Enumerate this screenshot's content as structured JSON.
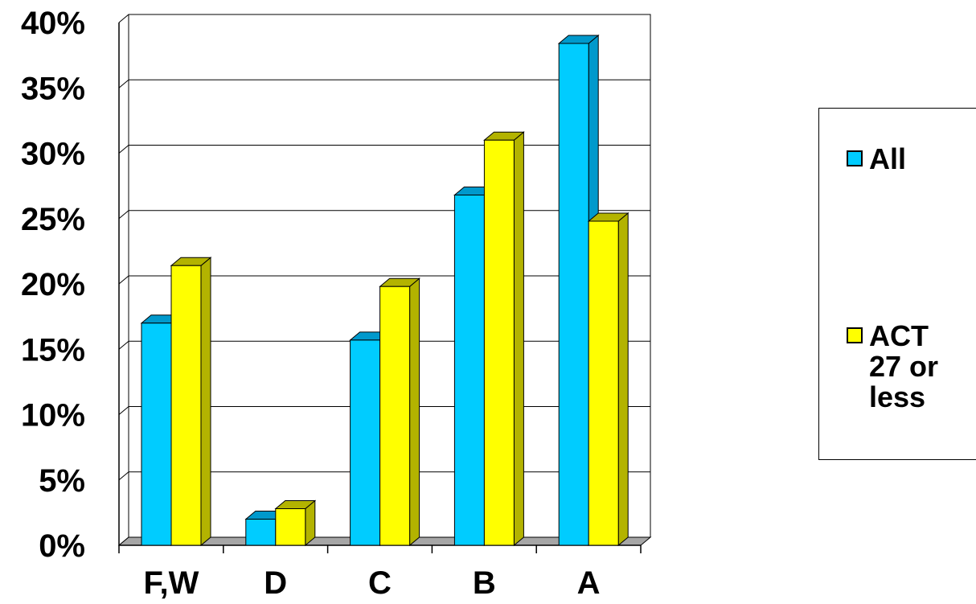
{
  "chart_data": {
    "type": "bar",
    "categories": [
      "F,W",
      "D",
      "C",
      "B",
      "A"
    ],
    "series": [
      {
        "name": "All",
        "values": [
          17,
          2,
          15.7,
          26.8,
          38.4
        ],
        "color": "#00ccff"
      },
      {
        "name": "ACT 27 or less",
        "values": [
          21.4,
          2.8,
          19.8,
          31,
          24.8
        ],
        "color": "#ffff00"
      }
    ],
    "yticks": [
      "0%",
      "5%",
      "10%",
      "15%",
      "20%",
      "25%",
      "30%",
      "35%",
      "40%"
    ],
    "ylim": [
      0,
      40
    ],
    "grid": true,
    "legend": "right",
    "colors": {
      "all_side": "#0099cc",
      "act_side": "#b3b300",
      "floor": "#a6a6a6"
    }
  }
}
